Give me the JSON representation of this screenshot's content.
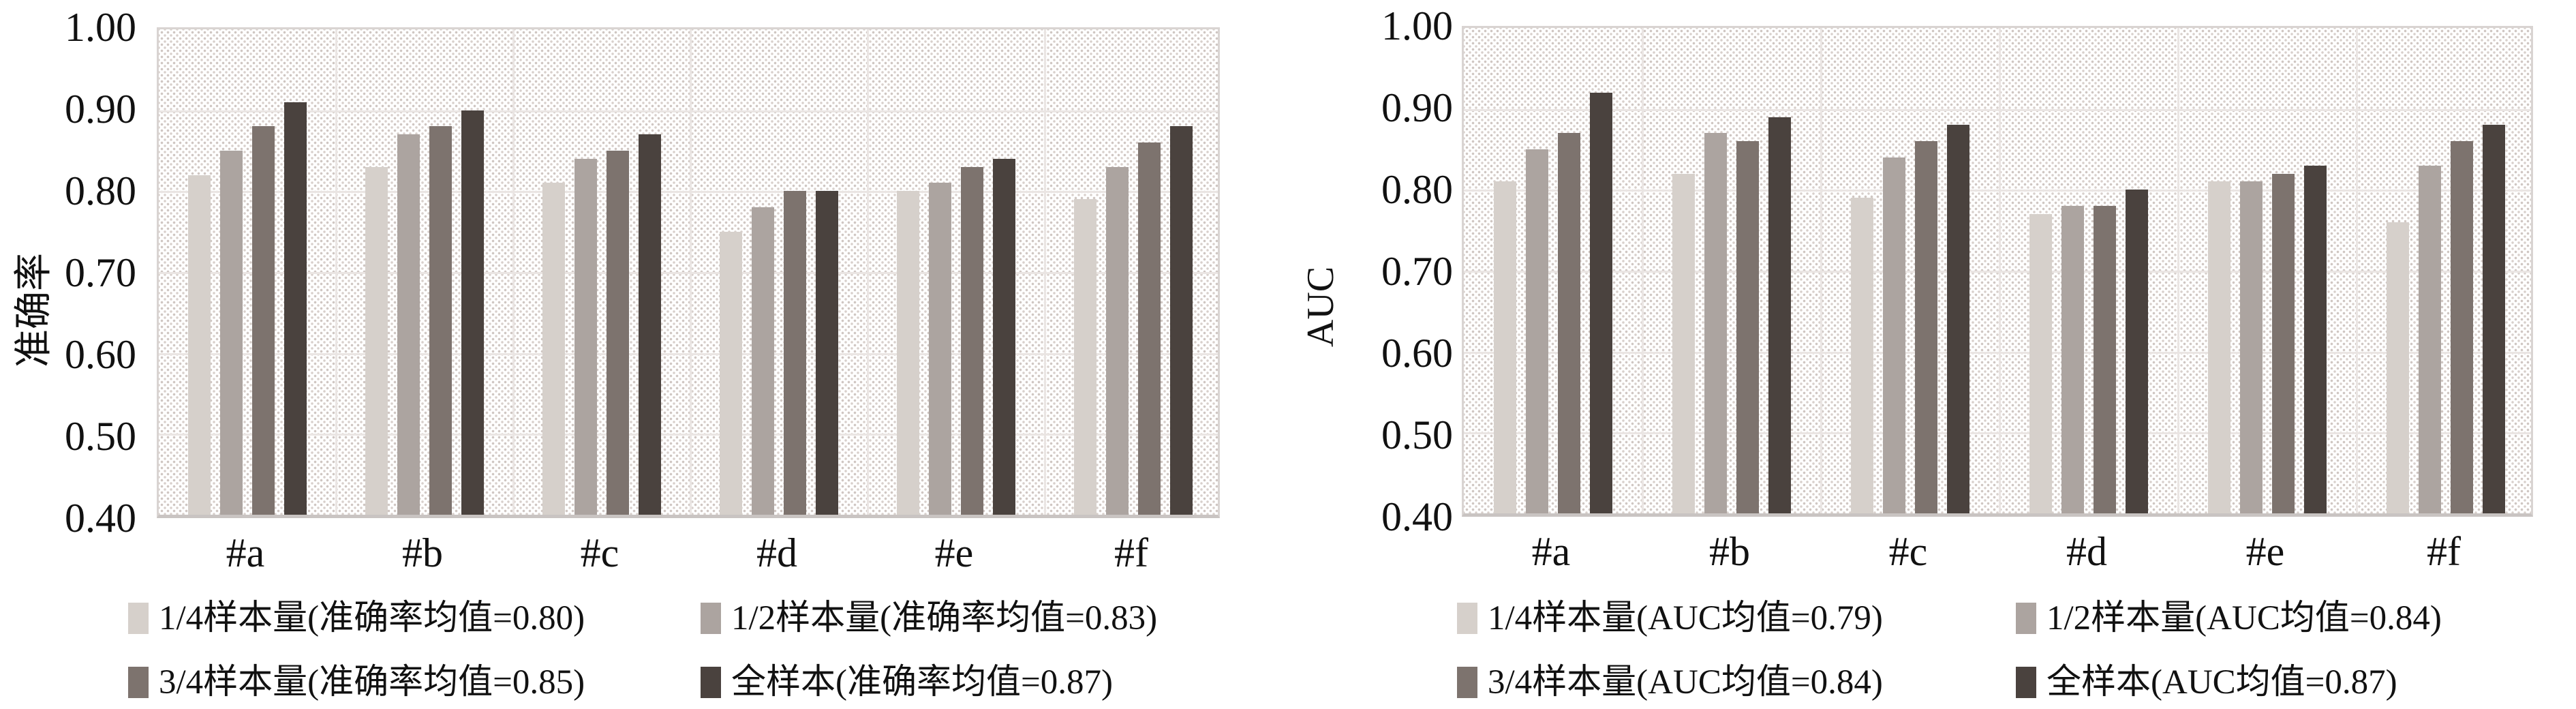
{
  "page": {
    "background": "#ffffff"
  },
  "chart_data": [
    {
      "type": "bar",
      "title": "",
      "xlabel": "",
      "ylabel": "准确率",
      "ylim": [
        0.4,
        1.0
      ],
      "yticks": [
        "1.00",
        "0.90",
        "0.80",
        "0.70",
        "0.60",
        "0.50",
        "0.40"
      ],
      "grid": true,
      "plot_background": "diagonal-dot-hatch",
      "legend_position": "bottom",
      "categories": [
        "#a",
        "#b",
        "#c",
        "#d",
        "#e",
        "#f"
      ],
      "series": [
        {
          "name": "1/4样本量(准确率均值=0.80)",
          "color": "#d6d0cb",
          "values": [
            0.82,
            0.83,
            0.81,
            0.75,
            0.8,
            0.79
          ]
        },
        {
          "name": "1/2样本量(准确率均值=0.83)",
          "color": "#aca4a0",
          "values": [
            0.85,
            0.87,
            0.84,
            0.78,
            0.81,
            0.83
          ]
        },
        {
          "name": "3/4样本量(准确率均值=0.85)",
          "color": "#7d736e",
          "values": [
            0.88,
            0.88,
            0.85,
            0.8,
            0.83,
            0.86
          ]
        },
        {
          "name": "全样本(准确率均值=0.87)",
          "color": "#4a423e",
          "values": [
            0.91,
            0.9,
            0.87,
            0.8,
            0.84,
            0.88
          ]
        }
      ]
    },
    {
      "type": "bar",
      "title": "",
      "xlabel": "",
      "ylabel": "AUC",
      "ylim": [
        0.4,
        1.0
      ],
      "yticks": [
        "1.00",
        "0.90",
        "0.80",
        "0.70",
        "0.60",
        "0.50",
        "0.40"
      ],
      "grid": true,
      "plot_background": "diagonal-dot-hatch",
      "legend_position": "bottom",
      "categories": [
        "#a",
        "#b",
        "#c",
        "#d",
        "#e",
        "#f"
      ],
      "series": [
        {
          "name": "1/4样本量(AUC均值=0.79)",
          "color": "#d6d0cb",
          "values": [
            0.81,
            0.82,
            0.79,
            0.77,
            0.81,
            0.76
          ]
        },
        {
          "name": "1/2样本量(AUC均值=0.84)",
          "color": "#aca4a0",
          "values": [
            0.85,
            0.87,
            0.84,
            0.78,
            0.81,
            0.83
          ]
        },
        {
          "name": "3/4样本量(AUC均值=0.84)",
          "color": "#7d736e",
          "values": [
            0.87,
            0.86,
            0.86,
            0.78,
            0.82,
            0.86
          ]
        },
        {
          "name": "全样本(AUC均值=0.87)",
          "color": "#4a423e",
          "values": [
            0.92,
            0.89,
            0.88,
            0.8,
            0.83,
            0.88
          ]
        }
      ]
    }
  ]
}
